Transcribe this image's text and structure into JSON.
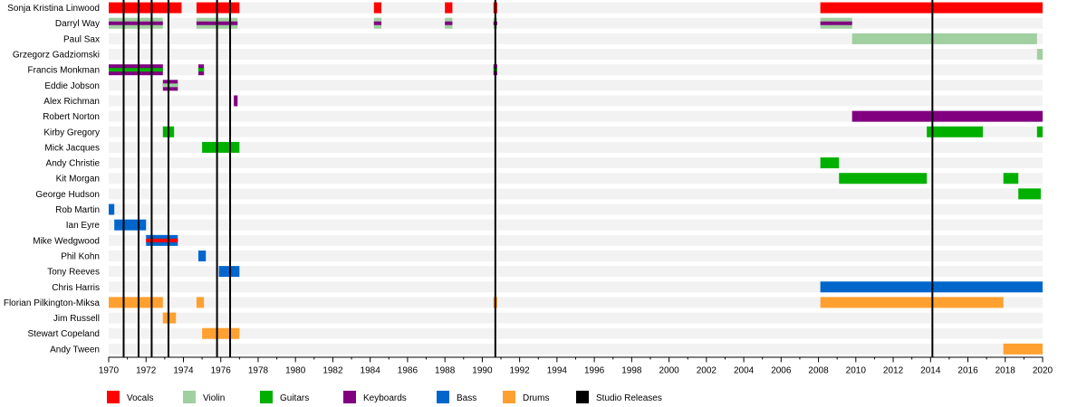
{
  "chart_data": {
    "type": "timeline",
    "xlim": [
      1970,
      2020
    ],
    "x_ticks": [
      1970,
      1972,
      1974,
      1976,
      1978,
      1980,
      1982,
      1984,
      1986,
      1988,
      1990,
      1992,
      1994,
      1996,
      1998,
      2000,
      2002,
      2004,
      2006,
      2008,
      2010,
      2012,
      2014,
      2016,
      2018,
      2020
    ],
    "colors": {
      "vocals": "#ff0000",
      "violin": "#a0cfa0",
      "guitars": "#00b000",
      "keyboards": "#800080",
      "bass": "#0066cc",
      "drums": "#ffa030",
      "studio": "#000000"
    },
    "legend": [
      {
        "role": "vocals",
        "label": "Vocals"
      },
      {
        "role": "violin",
        "label": "Violin"
      },
      {
        "role": "guitars",
        "label": "Guitars"
      },
      {
        "role": "keyboards",
        "label": "Keyboards"
      },
      {
        "role": "bass",
        "label": "Bass"
      },
      {
        "role": "drums",
        "label": "Drums"
      },
      {
        "role": "studio",
        "label": "Studio Releases"
      }
    ],
    "studio_releases": [
      1970.8,
      1971.6,
      1972.3,
      1973.2,
      1975.8,
      1976.5,
      1990.7,
      2014.1
    ],
    "members": [
      {
        "name": "Sonja Kristina Linwood",
        "periods": [
          {
            "start": 1970,
            "end": 1973.9,
            "roles": [
              "vocals"
            ]
          },
          {
            "start": 1974.7,
            "end": 1977,
            "roles": [
              "vocals"
            ]
          },
          {
            "start": 1984.2,
            "end": 1984.6,
            "roles": [
              "vocals"
            ]
          },
          {
            "start": 1988,
            "end": 1988.4,
            "roles": [
              "vocals"
            ]
          },
          {
            "start": 1990.6,
            "end": 1990.8,
            "roles": [
              "vocals"
            ]
          },
          {
            "start": 2008.1,
            "end": 2020,
            "roles": [
              "vocals"
            ]
          }
        ]
      },
      {
        "name": "Darryl Way",
        "periods": [
          {
            "start": 1970,
            "end": 1972.9,
            "roles": [
              "violin",
              "keyboards"
            ]
          },
          {
            "start": 1974.7,
            "end": 1976.9,
            "roles": [
              "violin",
              "keyboards"
            ]
          },
          {
            "start": 1984.2,
            "end": 1984.6,
            "roles": [
              "violin",
              "keyboards"
            ]
          },
          {
            "start": 1988,
            "end": 1988.4,
            "roles": [
              "violin",
              "keyboards"
            ]
          },
          {
            "start": 1990.6,
            "end": 1990.8,
            "roles": [
              "violin",
              "keyboards"
            ]
          },
          {
            "start": 2008.1,
            "end": 2009.8,
            "roles": [
              "violin",
              "keyboards"
            ]
          }
        ]
      },
      {
        "name": "Paul Sax",
        "periods": [
          {
            "start": 2009.8,
            "end": 2019.7,
            "roles": [
              "violin"
            ]
          }
        ]
      },
      {
        "name": "Grzegorz Gadziomski",
        "periods": [
          {
            "start": 2019.7,
            "end": 2020,
            "roles": [
              "violin"
            ]
          }
        ]
      },
      {
        "name": "Francis Monkman",
        "periods": [
          {
            "start": 1970,
            "end": 1972.9,
            "roles": [
              "keyboards",
              "guitars"
            ]
          },
          {
            "start": 1974.8,
            "end": 1975.1,
            "roles": [
              "keyboards",
              "guitars"
            ]
          },
          {
            "start": 1990.6,
            "end": 1990.8,
            "roles": [
              "keyboards",
              "guitars"
            ]
          }
        ]
      },
      {
        "name": "Eddie Jobson",
        "periods": [
          {
            "start": 1972.9,
            "end": 1973.7,
            "roles": [
              "keyboards",
              "violin"
            ]
          }
        ]
      },
      {
        "name": "Alex Richman",
        "periods": [
          {
            "start": 1976.7,
            "end": 1976.9,
            "roles": [
              "keyboards"
            ]
          }
        ]
      },
      {
        "name": "Robert Norton",
        "periods": [
          {
            "start": 2009.8,
            "end": 2020,
            "roles": [
              "keyboards"
            ]
          }
        ]
      },
      {
        "name": "Kirby Gregory",
        "periods": [
          {
            "start": 1972.9,
            "end": 1973.5,
            "roles": [
              "guitars"
            ]
          },
          {
            "start": 2013.8,
            "end": 2016.8,
            "roles": [
              "guitars"
            ]
          },
          {
            "start": 2019.7,
            "end": 2020,
            "roles": [
              "guitars"
            ]
          }
        ]
      },
      {
        "name": "Mick Jacques",
        "periods": [
          {
            "start": 1975,
            "end": 1977,
            "roles": [
              "guitars"
            ]
          }
        ]
      },
      {
        "name": "Andy Christie",
        "periods": [
          {
            "start": 2008.1,
            "end": 2009.1,
            "roles": [
              "guitars"
            ]
          }
        ]
      },
      {
        "name": "Kit Morgan",
        "periods": [
          {
            "start": 2009.1,
            "end": 2013.8,
            "roles": [
              "guitars"
            ]
          },
          {
            "start": 2017.9,
            "end": 2018.7,
            "roles": [
              "guitars"
            ]
          }
        ]
      },
      {
        "name": "George Hudson",
        "periods": [
          {
            "start": 2018.7,
            "end": 2019.9,
            "roles": [
              "guitars"
            ]
          }
        ]
      },
      {
        "name": "Rob Martin",
        "periods": [
          {
            "start": 1970,
            "end": 1970.3,
            "roles": [
              "bass"
            ]
          }
        ]
      },
      {
        "name": "Ian Eyre",
        "periods": [
          {
            "start": 1970.3,
            "end": 1972,
            "roles": [
              "bass"
            ]
          }
        ]
      },
      {
        "name": "Mike Wedgwood",
        "periods": [
          {
            "start": 1972,
            "end": 1973.7,
            "roles": [
              "bass",
              "vocals"
            ]
          }
        ]
      },
      {
        "name": "Phil Kohn",
        "periods": [
          {
            "start": 1974.8,
            "end": 1975.2,
            "roles": [
              "bass"
            ]
          }
        ]
      },
      {
        "name": "Tony Reeves",
        "periods": [
          {
            "start": 1975.9,
            "end": 1977,
            "roles": [
              "bass"
            ]
          }
        ]
      },
      {
        "name": "Chris Harris",
        "periods": [
          {
            "start": 2008.1,
            "end": 2020,
            "roles": [
              "bass"
            ]
          }
        ]
      },
      {
        "name": "Florian Pilkington-Miksa",
        "periods": [
          {
            "start": 1970,
            "end": 1972.9,
            "roles": [
              "drums"
            ]
          },
          {
            "start": 1974.7,
            "end": 1975.1,
            "roles": [
              "drums"
            ]
          },
          {
            "start": 1990.6,
            "end": 1990.8,
            "roles": [
              "drums"
            ]
          },
          {
            "start": 2008.1,
            "end": 2017.9,
            "roles": [
              "drums"
            ]
          }
        ]
      },
      {
        "name": "Jim Russell",
        "periods": [
          {
            "start": 1972.9,
            "end": 1973.6,
            "roles": [
              "drums"
            ]
          }
        ]
      },
      {
        "name": "Stewart Copeland",
        "periods": [
          {
            "start": 1975,
            "end": 1977,
            "roles": [
              "drums"
            ]
          }
        ]
      },
      {
        "name": "Andy Tween",
        "periods": [
          {
            "start": 2017.9,
            "end": 2020,
            "roles": [
              "drums"
            ]
          }
        ]
      }
    ]
  }
}
